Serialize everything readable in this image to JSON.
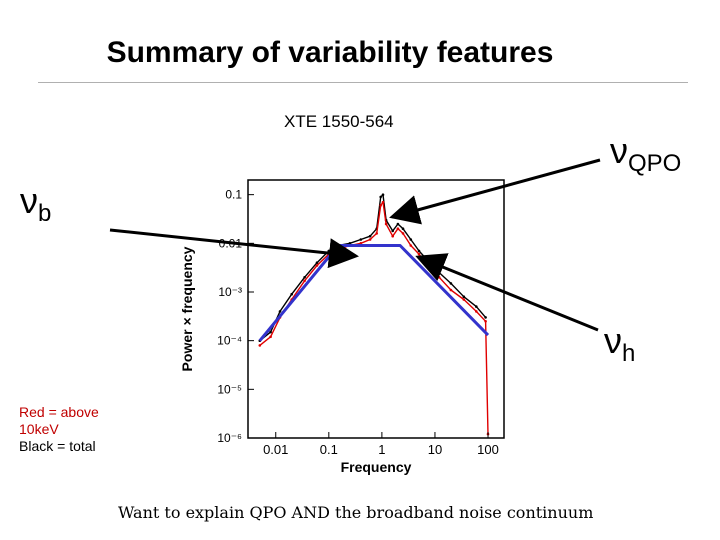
{
  "slide": {
    "title": "Summary of variability features",
    "plot_label": "XTE 1550-564",
    "nu_qpo": {
      "symbol": "ν",
      "sub": "QPO"
    },
    "nu_b": {
      "symbol": "ν",
      "sub": "b"
    },
    "nu_h": {
      "symbol": "ν",
      "sub": "h"
    },
    "legend": {
      "red_line1": "Red  = above",
      "red_line2": "10keV",
      "black_line": "Black  = total"
    },
    "caption": "Want to explain QPO AND the broadband noise continuum"
  },
  "chart_data": {
    "type": "line",
    "xlabel": "Frequency",
    "ylabel": "Power × frequency",
    "xscale": "log",
    "yscale": "log",
    "xlim": [
      0.003,
      200
    ],
    "ylim": [
      1e-06,
      0.2
    ],
    "xticks": [
      {
        "v": 0.01,
        "label": "0.01"
      },
      {
        "v": 0.1,
        "label": "0.1"
      },
      {
        "v": 1,
        "label": "1"
      },
      {
        "v": 10,
        "label": "10"
      },
      {
        "v": 100,
        "label": "100"
      }
    ],
    "yticks": [
      {
        "v": 0.1,
        "label": "0.1"
      },
      {
        "v": 0.01,
        "label": "0.01"
      },
      {
        "v": 0.001,
        "label": "10⁻³"
      },
      {
        "v": 0.0001,
        "label": "10⁻⁴"
      },
      {
        "v": 1e-05,
        "label": "10⁻⁵"
      },
      {
        "v": 1e-06,
        "label": "10⁻⁶"
      }
    ],
    "series": [
      {
        "color": "#000000",
        "points": [
          [
            0.005,
            0.0001
          ],
          [
            0.008,
            0.00015
          ],
          [
            0.012,
            0.0004
          ],
          [
            0.02,
            0.0009
          ],
          [
            0.035,
            0.002
          ],
          [
            0.06,
            0.004
          ],
          [
            0.1,
            0.007
          ],
          [
            0.15,
            0.009
          ],
          [
            0.25,
            0.01
          ],
          [
            0.4,
            0.012
          ],
          [
            0.6,
            0.014
          ],
          [
            0.8,
            0.02
          ],
          [
            0.95,
            0.09
          ],
          [
            1.05,
            0.1
          ],
          [
            1.2,
            0.03
          ],
          [
            1.6,
            0.018
          ],
          [
            2,
            0.025
          ],
          [
            2.5,
            0.02
          ],
          [
            3.5,
            0.012
          ],
          [
            5,
            0.007
          ],
          [
            8,
            0.004
          ],
          [
            12,
            0.0025
          ],
          [
            20,
            0.0015
          ],
          [
            35,
            0.0008
          ],
          [
            60,
            0.0005
          ],
          [
            90,
            0.0003
          ]
        ]
      },
      {
        "color": "#e00000",
        "points": [
          [
            0.005,
            8e-05
          ],
          [
            0.008,
            0.00012
          ],
          [
            0.012,
            0.0003
          ],
          [
            0.02,
            0.0007
          ],
          [
            0.035,
            0.0017
          ],
          [
            0.06,
            0.0035
          ],
          [
            0.1,
            0.006
          ],
          [
            0.15,
            0.0075
          ],
          [
            0.25,
            0.009
          ],
          [
            0.4,
            0.01
          ],
          [
            0.6,
            0.012
          ],
          [
            0.8,
            0.016
          ],
          [
            0.95,
            0.06
          ],
          [
            1.05,
            0.07
          ],
          [
            1.2,
            0.025
          ],
          [
            1.6,
            0.014
          ],
          [
            2,
            0.02
          ],
          [
            2.5,
            0.016
          ],
          [
            3.5,
            0.009
          ],
          [
            5,
            0.006
          ],
          [
            8,
            0.003
          ],
          [
            12,
            0.002
          ],
          [
            20,
            0.0011
          ],
          [
            35,
            0.0007
          ],
          [
            60,
            0.0004
          ],
          [
            90,
            0.00025
          ],
          [
            100,
            1.2e-06
          ]
        ]
      },
      {
        "color": "#3333cc",
        "points": [
          [
            0.005,
            0.0001
          ],
          [
            0.15,
            0.009
          ],
          [
            2.2,
            0.009
          ],
          [
            100,
            0.00013
          ]
        ]
      }
    ]
  }
}
